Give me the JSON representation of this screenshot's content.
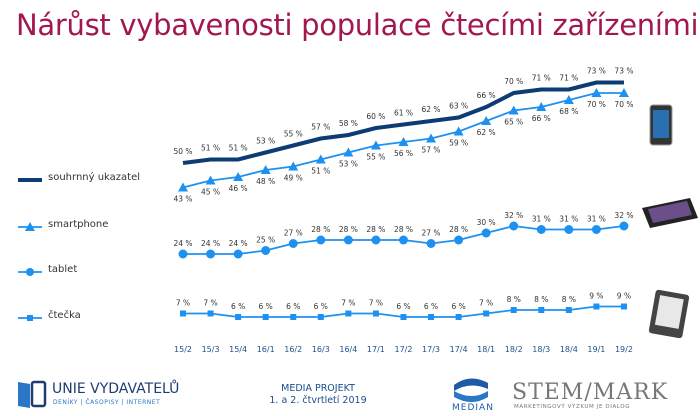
{
  "title": "Nárůst vybavenosti populace čtecími zařízeními",
  "chart_data": {
    "type": "line",
    "title": "Nárůst vybavenosti populace čtecími zařízeními",
    "categories": [
      "15/2",
      "15/3",
      "15/4",
      "16/1",
      "16/2",
      "16/3",
      "16/4",
      "17/1",
      "17/2",
      "17/3",
      "17/4",
      "18/1",
      "18/2",
      "18/3",
      "18/4",
      "19/1",
      "19/2"
    ],
    "series": [
      {
        "name": "souhrnný ukazatel",
        "color": "#0d3b73",
        "marker": "none",
        "values": [
          50,
          51,
          51,
          53,
          55,
          57,
          58,
          60,
          61,
          62,
          63,
          66,
          70,
          71,
          71,
          73,
          73
        ]
      },
      {
        "name": "smartphone",
        "color": "#1e90f0",
        "marker": "triangle",
        "values": [
          43,
          45,
          46,
          48,
          49,
          51,
          53,
          55,
          56,
          57,
          59,
          62,
          65,
          66,
          68,
          70,
          70
        ]
      },
      {
        "name": "tablet",
        "color": "#1e90f0",
        "marker": "circle",
        "values": [
          24,
          24,
          24,
          25,
          27,
          28,
          28,
          28,
          28,
          27,
          28,
          30,
          32,
          31,
          31,
          31,
          32
        ]
      },
      {
        "name": "čtečka",
        "color": "#1e90f0",
        "marker": "square",
        "values": [
          7,
          7,
          6,
          6,
          6,
          6,
          7,
          7,
          6,
          6,
          6,
          7,
          8,
          8,
          8,
          9,
          9
        ]
      }
    ],
    "value_suffix": " %",
    "legend": "left",
    "grid": false
  },
  "footer": {
    "publisher": "UNIE VYDAVATELŮ",
    "publisher_sub": "DENÍKY | ČASOPISY | INTERNET",
    "project": "MEDIA PROJEKT",
    "period": "1. a 2. čtvrtletí 2019",
    "median": "MEDIAN",
    "stem": "STEM/MARK",
    "stem_sub": "MARKETINGOVÝ VÝZKUM JE DIALOG"
  }
}
